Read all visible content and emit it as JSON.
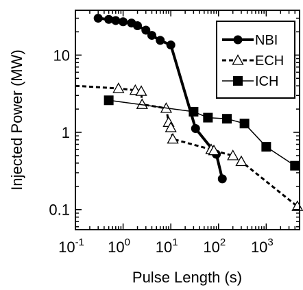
{
  "chart_data": {
    "type": "scatter",
    "title": "",
    "xlabel": "Pulse Length (s)",
    "ylabel": "Injected Power (MW)",
    "x_scale": "log",
    "y_scale": "log",
    "xlim": [
      0.1,
      5000
    ],
    "ylim": [
      0.055,
      38
    ],
    "grid": false,
    "legend_position": "top-right",
    "x_ticks": [
      {
        "value": 0.1,
        "base": "10",
        "exp": "-1"
      },
      {
        "value": 1,
        "base": "10",
        "exp": "0"
      },
      {
        "value": 10,
        "base": "10",
        "exp": "1"
      },
      {
        "value": 100,
        "base": "10",
        "exp": "2"
      },
      {
        "value": 1000,
        "base": "10",
        "exp": "3"
      }
    ],
    "y_ticks": [
      {
        "value": 0.1,
        "label": "0.1"
      },
      {
        "value": 1,
        "label": "1"
      },
      {
        "value": 10,
        "label": "10"
      }
    ],
    "series": [
      {
        "name": "NBI",
        "marker": "circle",
        "line": "solid",
        "x": [
          0.3,
          0.5,
          0.7,
          1.0,
          1.5,
          2.0,
          3.0,
          4.0,
          6.0,
          10,
          33,
          90,
          120
        ],
        "y": [
          30,
          29,
          28,
          27,
          26,
          24,
          21,
          18,
          15.5,
          13.5,
          1.12,
          0.52,
          0.25
        ]
      },
      {
        "name": "ECH",
        "marker": "open-triangle",
        "line": "dashed",
        "x": [
          0.1,
          0.8,
          1.8,
          2.4,
          2.5,
          8,
          9,
          10,
          11,
          70,
          80,
          200,
          300,
          4500
        ],
        "y": [
          4.0,
          3.7,
          3.5,
          3.4,
          2.3,
          2.05,
          1.35,
          1.15,
          0.82,
          0.6,
          0.58,
          0.5,
          0.42,
          0.11
        ],
        "marked": [
          false,
          true,
          true,
          true,
          true,
          true,
          true,
          true,
          true,
          true,
          true,
          true,
          true,
          true
        ]
      },
      {
        "name": "ICH",
        "marker": "square",
        "line": "solid",
        "x": [
          0.5,
          30,
          60,
          150,
          350,
          1000,
          4000
        ],
        "y": [
          2.6,
          1.85,
          1.55,
          1.5,
          1.3,
          0.65,
          0.37
        ]
      }
    ]
  }
}
